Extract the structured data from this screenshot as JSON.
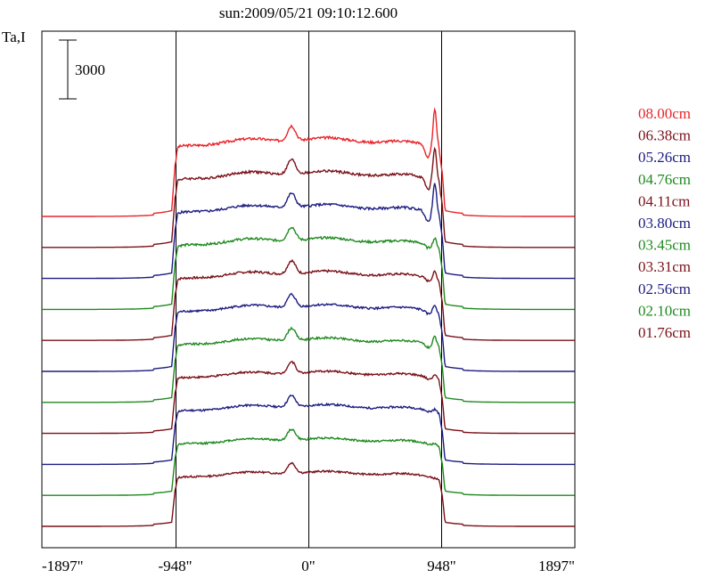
{
  "chart_data": {
    "type": "line",
    "title": "sun:2009/05/21 09:10:12.600",
    "ylabel": "Ta,I",
    "scale_bar_label": "3000",
    "scale_bar_value": 3000,
    "x_ticks": [
      {
        "value": -1897,
        "label": "-1897\""
      },
      {
        "value": -948,
        "label": "-948\""
      },
      {
        "value": 0,
        "label": "0\""
      },
      {
        "value": 948,
        "label": "948\""
      },
      {
        "value": 1897,
        "label": "1897\""
      }
    ],
    "xlim": [
      -1897,
      1897
    ],
    "vertical_lines_at": [
      -948,
      0,
      948
    ],
    "legend_placement": "right",
    "series": [
      {
        "name": "08.00cm",
        "color": "#e8242a",
        "offset_rank": 10,
        "limb_peak": 1.0
      },
      {
        "name": "06.38cm",
        "color": "#7a1118",
        "offset_rank": 9,
        "limb_peak": 0.9
      },
      {
        "name": "05.26cm",
        "color": "#1c1c82",
        "offset_rank": 8,
        "limb_peak": 0.85
      },
      {
        "name": "04.76cm",
        "color": "#1f8a1f",
        "offset_rank": 7,
        "limb_peak": 0.25
      },
      {
        "name": "04.11cm",
        "color": "#7a1118",
        "offset_rank": 6,
        "limb_peak": 0.25
      },
      {
        "name": "03.80cm",
        "color": "#1c1c82",
        "offset_rank": 5,
        "limb_peak": 0.25
      },
      {
        "name": "03.45cm",
        "color": "#1f8a1f",
        "offset_rank": 4,
        "limb_peak": 0.3
      },
      {
        "name": "03.31cm",
        "color": "#7a1118",
        "offset_rank": 3,
        "limb_peak": 0.15
      },
      {
        "name": "02.56cm",
        "color": "#1c1c82",
        "offset_rank": 2,
        "limb_peak": 0.1
      },
      {
        "name": "02.10cm",
        "color": "#1f8a1f",
        "offset_rank": 1,
        "limb_peak": 0.05
      },
      {
        "name": "01.76cm",
        "color": "#7a1118",
        "offset_rank": 0,
        "limb_peak": 0.0
      }
    ]
  }
}
